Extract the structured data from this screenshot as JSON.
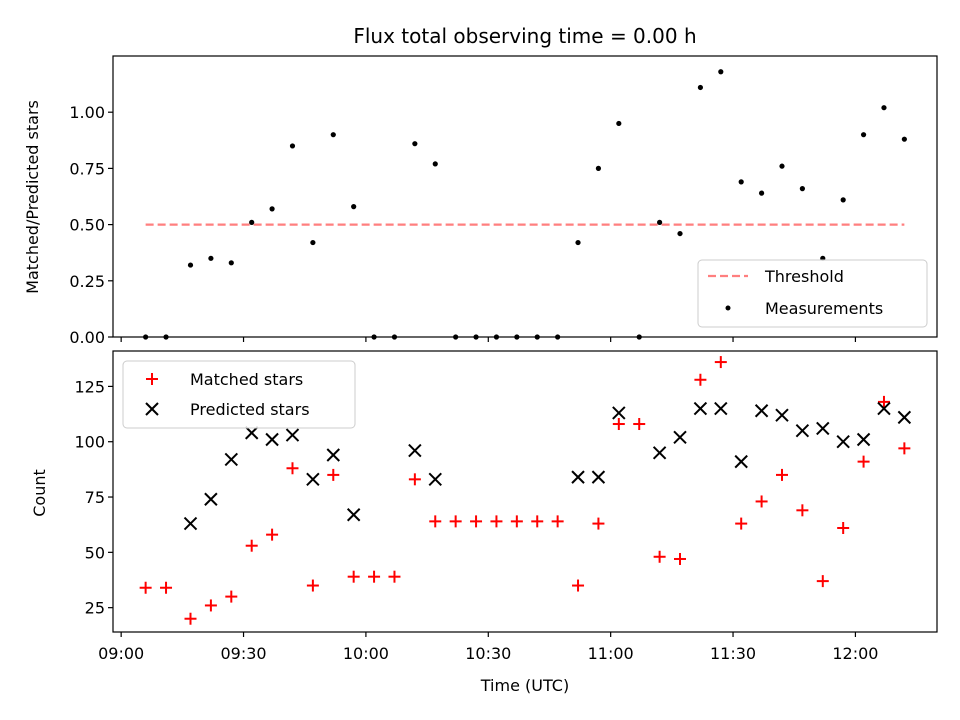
{
  "chart_data": [
    {
      "type": "scatter",
      "title": "Flux total observing time = 0.00 h",
      "xlabel": "",
      "ylabel": "Matched/Predicted stars",
      "ylim": [
        0,
        1.25
      ],
      "yticks": [
        "0.00",
        "0.25",
        "0.50",
        "0.75",
        "1.00"
      ],
      "ytick_values": [
        0,
        0.25,
        0.5,
        0.75,
        1.0
      ],
      "xlim": [
        "08:58",
        "12:20"
      ],
      "legend_position": "lower-right",
      "threshold": {
        "name": "Threshold",
        "value": 0.5,
        "x_start": "09:06",
        "x_end": "12:12",
        "color": "#ff7f7f"
      },
      "series": [
        {
          "name": "Measurements",
          "color": "#000000",
          "x": [
            "09:06",
            "09:11",
            "09:17",
            "09:22",
            "09:27",
            "09:32",
            "09:37",
            "09:42",
            "09:47",
            "09:52",
            "09:57",
            "10:02",
            "10:07",
            "10:12",
            "10:17",
            "10:22",
            "10:27",
            "10:32",
            "10:37",
            "10:42",
            "10:47",
            "10:52",
            "10:57",
            "11:02",
            "11:07",
            "11:12",
            "11:17",
            "11:22",
            "11:27",
            "11:32",
            "11:37",
            "11:42",
            "11:47",
            "11:52",
            "11:57",
            "12:02",
            "12:07",
            "12:12"
          ],
          "y": [
            0.0,
            0.0,
            0.32,
            0.35,
            0.33,
            0.51,
            0.57,
            0.85,
            0.42,
            0.9,
            0.58,
            0.0,
            0.0,
            0.86,
            0.77,
            0.0,
            0.0,
            0.0,
            0.0,
            0.0,
            0.0,
            0.42,
            0.75,
            0.95,
            0.0,
            0.51,
            0.46,
            1.11,
            1.18,
            0.69,
            0.64,
            0.76,
            0.66,
            0.35,
            0.61,
            0.9,
            1.02,
            0.88
          ]
        }
      ]
    },
    {
      "type": "scatter",
      "title": "",
      "xlabel": "Time (UTC)",
      "ylabel": "Count",
      "ylim": [
        14,
        141
      ],
      "yticks": [
        "25",
        "50",
        "75",
        "100",
        "125"
      ],
      "ytick_values": [
        25,
        50,
        75,
        100,
        125
      ],
      "xlim": [
        "08:58",
        "12:20"
      ],
      "xticks": [
        "09:00",
        "09:30",
        "10:00",
        "10:30",
        "11:00",
        "11:30",
        "12:00"
      ],
      "legend_position": "upper-left",
      "series": [
        {
          "name": "Matched stars",
          "color": "#ff0000",
          "marker": "plus",
          "x": [
            "09:06",
            "09:11",
            "09:17",
            "09:22",
            "09:27",
            "09:32",
            "09:37",
            "09:42",
            "09:47",
            "09:52",
            "09:57",
            "10:02",
            "10:07",
            "10:12",
            "10:17",
            "10:22",
            "10:27",
            "10:32",
            "10:37",
            "10:42",
            "10:47",
            "10:52",
            "10:57",
            "11:02",
            "11:07",
            "11:12",
            "11:17",
            "11:22",
            "11:27",
            "11:32",
            "11:37",
            "11:42",
            "11:47",
            "11:52",
            "11:57",
            "12:02",
            "12:07",
            "12:12"
          ],
          "y": [
            34,
            34,
            20,
            26,
            30,
            53,
            58,
            88,
            35,
            85,
            39,
            39,
            39,
            83,
            64,
            64,
            64,
            64,
            64,
            64,
            64,
            35,
            63,
            108,
            108,
            48,
            47,
            128,
            136,
            63,
            73,
            85,
            69,
            37,
            61,
            91,
            118,
            97
          ]
        },
        {
          "name": "Predicted stars",
          "color": "#000000",
          "marker": "x",
          "x": [
            "09:17",
            "09:22",
            "09:27",
            "09:32",
            "09:37",
            "09:42",
            "09:47",
            "09:52",
            "09:57",
            "10:12",
            "10:17",
            "10:52",
            "10:57",
            "11:02",
            "11:12",
            "11:17",
            "11:22",
            "11:27",
            "11:32",
            "11:37",
            "11:42",
            "11:47",
            "11:52",
            "11:57",
            "12:02",
            "12:07",
            "12:12"
          ],
          "y": [
            63,
            74,
            92,
            104,
            101,
            103,
            83,
            94,
            67,
            96,
            83,
            84,
            84,
            113,
            95,
            102,
            115,
            115,
            91,
            114,
            112,
            105,
            106,
            100,
            101,
            115,
            111
          ]
        }
      ]
    }
  ]
}
